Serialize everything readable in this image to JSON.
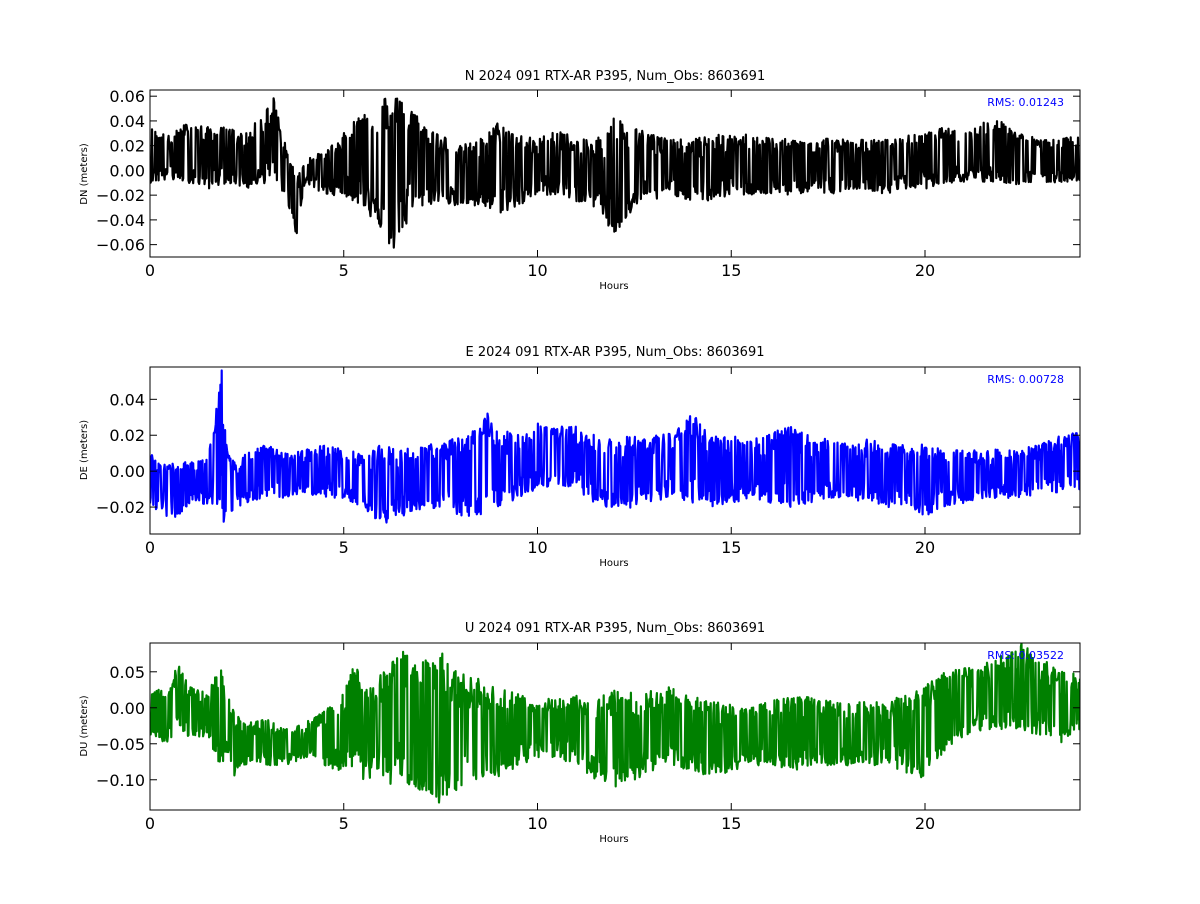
{
  "figure": {
    "background": "#ffffff"
  },
  "chart_data": [
    {
      "type": "line",
      "title": "N 2024 091 RTX-AR  P395, Num_Obs: 8603691",
      "xlabel": "Hours",
      "ylabel": "DN (meters)",
      "xlim": [
        0,
        24
      ],
      "ylim": [
        -0.07,
        0.065
      ],
      "xticks": [
        0,
        5,
        10,
        15,
        20
      ],
      "xtick_labels": [
        "0",
        "5",
        "10",
        "15",
        "20"
      ],
      "yticks": [
        -0.06,
        -0.04,
        -0.02,
        0.0,
        0.02,
        0.04,
        0.06
      ],
      "ytick_labels": [
        "−0.06",
        "−0.04",
        "−0.02",
        "0.00",
        "0.02",
        "0.04",
        "0.06"
      ],
      "annotation": "RMS:  0.01243",
      "annotation_color": "#0000ff",
      "grid": false,
      "series": [
        {
          "color": "#000000",
          "x": [
            0,
            0.5,
            1,
            1.5,
            2,
            2.5,
            3,
            3.2,
            3.5,
            3.8,
            4,
            4.5,
            5,
            5.5,
            6,
            6.2,
            6.5,
            7,
            7.5,
            8,
            8.5,
            9,
            9.5,
            10,
            10.5,
            11,
            11.5,
            12,
            12.5,
            13,
            13.5,
            14,
            14.5,
            15,
            15.5,
            16,
            16.5,
            17,
            17.5,
            18,
            18.5,
            19,
            19.5,
            20,
            20.5,
            21,
            21.5,
            22,
            22.5,
            23,
            23.5,
            24
          ],
          "upper": [
            0.035,
            0.028,
            0.04,
            0.035,
            0.035,
            0.03,
            0.05,
            0.06,
            0.02,
            -0.005,
            0.01,
            0.015,
            0.03,
            0.05,
            0.065,
            0.055,
            0.065,
            0.04,
            0.03,
            0.02,
            0.025,
            0.04,
            0.03,
            0.025,
            0.035,
            0.025,
            0.025,
            0.045,
            0.035,
            0.03,
            0.025,
            0.025,
            0.03,
            0.028,
            0.03,
            0.027,
            0.025,
            0.025,
            0.027,
            0.025,
            0.025,
            0.025,
            0.028,
            0.03,
            0.035,
            0.03,
            0.04,
            0.04,
            0.03,
            0.025,
            0.025,
            0.03
          ],
          "lower": [
            -0.01,
            -0.008,
            -0.01,
            -0.015,
            -0.01,
            -0.015,
            -0.01,
            -0.01,
            -0.02,
            -0.055,
            -0.01,
            -0.02,
            -0.02,
            -0.03,
            -0.05,
            -0.07,
            -0.05,
            -0.03,
            -0.025,
            -0.03,
            -0.03,
            -0.035,
            -0.03,
            -0.02,
            -0.02,
            -0.025,
            -0.03,
            -0.055,
            -0.03,
            -0.025,
            -0.02,
            -0.025,
            -0.025,
            -0.02,
            -0.02,
            -0.02,
            -0.02,
            -0.018,
            -0.02,
            -0.015,
            -0.015,
            -0.02,
            -0.015,
            -0.015,
            -0.01,
            -0.01,
            -0.01,
            -0.01,
            -0.012,
            -0.01,
            -0.01,
            -0.008
          ]
        }
      ]
    },
    {
      "type": "line",
      "title": "E 2024 091 RTX-AR  P395, Num_Obs: 8603691",
      "xlabel": "Hours",
      "ylabel": "DE (meters)",
      "xlim": [
        0,
        24
      ],
      "ylim": [
        -0.035,
        0.058
      ],
      "xticks": [
        0,
        5,
        10,
        15,
        20
      ],
      "xtick_labels": [
        "0",
        "5",
        "10",
        "15",
        "20"
      ],
      "yticks": [
        -0.02,
        0.0,
        0.02,
        0.04
      ],
      "ytick_labels": [
        "−0.02",
        "0.00",
        "0.02",
        "0.04"
      ],
      "annotation": "RMS:  0.00728",
      "annotation_color": "#0000ff",
      "grid": false,
      "series": [
        {
          "color": "#0000ff",
          "x": [
            0,
            0.5,
            1,
            1.5,
            1.85,
            1.9,
            2,
            2.2,
            2.5,
            3,
            3.5,
            4,
            4.5,
            5,
            5.5,
            6,
            6.5,
            7,
            7.5,
            8,
            8.5,
            8.7,
            9,
            9.5,
            10,
            10.5,
            11,
            11.5,
            12,
            12.5,
            13,
            13.5,
            14,
            14.5,
            15,
            15.5,
            16,
            16.5,
            17,
            17.5,
            18,
            18.5,
            19,
            19.5,
            20,
            20.5,
            21,
            21.5,
            22,
            22.5,
            23,
            23.5,
            24
          ],
          "upper": [
            0.01,
            0.005,
            0.005,
            0.008,
            0.058,
            0.035,
            0.01,
            0.005,
            0.01,
            0.015,
            0.01,
            0.012,
            0.015,
            0.012,
            0.01,
            0.015,
            0.012,
            0.015,
            0.015,
            0.02,
            0.025,
            0.033,
            0.022,
            0.022,
            0.028,
            0.025,
            0.025,
            0.02,
            0.018,
            0.02,
            0.02,
            0.022,
            0.032,
            0.02,
            0.02,
            0.018,
            0.022,
            0.025,
            0.02,
            0.018,
            0.015,
            0.018,
            0.015,
            0.015,
            0.015,
            0.012,
            0.012,
            0.012,
            0.012,
            0.013,
            0.015,
            0.02,
            0.022
          ],
          "lower": [
            -0.02,
            -0.028,
            -0.02,
            -0.018,
            -0.02,
            -0.03,
            -0.035,
            -0.02,
            -0.018,
            -0.015,
            -0.015,
            -0.012,
            -0.015,
            -0.015,
            -0.02,
            -0.03,
            -0.025,
            -0.022,
            -0.02,
            -0.025,
            -0.028,
            -0.025,
            -0.02,
            -0.015,
            -0.01,
            -0.008,
            -0.01,
            -0.018,
            -0.022,
            -0.02,
            -0.018,
            -0.015,
            -0.018,
            -0.02,
            -0.018,
            -0.015,
            -0.018,
            -0.02,
            -0.018,
            -0.015,
            -0.015,
            -0.018,
            -0.02,
            -0.02,
            -0.025,
            -0.02,
            -0.018,
            -0.015,
            -0.015,
            -0.015,
            -0.012,
            -0.012,
            -0.01
          ]
        }
      ]
    },
    {
      "type": "line",
      "title": "U 2024 091 RTX-AR  P395, Num_Obs: 8603691",
      "xlabel": "Hours",
      "ylabel": "DU (meters)",
      "xlim": [
        0,
        24
      ],
      "ylim": [
        -0.142,
        0.09
      ],
      "xticks": [
        0,
        5,
        10,
        15,
        20
      ],
      "xtick_labels": [
        "0",
        "5",
        "10",
        "15",
        "20"
      ],
      "yticks": [
        -0.1,
        -0.05,
        0.0,
        0.05
      ],
      "ytick_labels": [
        "−0.10",
        "−0.05",
        "0.00",
        "0.05"
      ],
      "annotation": "RMS:  0.03522",
      "annotation_color": "#0000ff",
      "grid": false,
      "series": [
        {
          "color": "#008000",
          "x": [
            0,
            0.5,
            0.7,
            1,
            1.5,
            1.8,
            2,
            2.2,
            2.5,
            3,
            3.5,
            4,
            4.5,
            5,
            5.3,
            5.5,
            6,
            6.5,
            7,
            7.5,
            7.7,
            8,
            8.5,
            9,
            9.5,
            10,
            10.5,
            11,
            11.5,
            12,
            12.5,
            13,
            13.5,
            14,
            14.5,
            15,
            15.5,
            16,
            16.5,
            17,
            17.5,
            18,
            18.5,
            19,
            19.5,
            20,
            20.5,
            21,
            21.5,
            22,
            22.5,
            23,
            23.5,
            24
          ],
          "upper": [
            0.03,
            0.03,
            0.065,
            0.03,
            0.02,
            0.065,
            0.03,
            -0.01,
            -0.02,
            -0.015,
            -0.03,
            -0.02,
            -0.005,
            0.02,
            0.065,
            0.02,
            0.05,
            0.08,
            0.07,
            0.08,
            0.06,
            0.05,
            0.04,
            0.03,
            0.02,
            0.01,
            0.015,
            0.02,
            0.01,
            0.03,
            0.02,
            0.025,
            0.03,
            0.015,
            0.01,
            0.005,
            0.0,
            0.01,
            0.02,
            0.015,
            0.01,
            0.01,
            0.01,
            0.01,
            0.02,
            0.03,
            0.05,
            0.055,
            0.06,
            0.075,
            0.09,
            0.07,
            0.05,
            0.05
          ],
          "lower": [
            -0.04,
            -0.05,
            -0.04,
            -0.04,
            -0.04,
            -0.09,
            -0.06,
            -0.1,
            -0.08,
            -0.08,
            -0.08,
            -0.07,
            -0.08,
            -0.09,
            -0.08,
            -0.1,
            -0.11,
            -0.1,
            -0.12,
            -0.14,
            -0.13,
            -0.12,
            -0.1,
            -0.1,
            -0.08,
            -0.07,
            -0.07,
            -0.08,
            -0.1,
            -0.11,
            -0.1,
            -0.09,
            -0.08,
            -0.09,
            -0.1,
            -0.09,
            -0.08,
            -0.08,
            -0.09,
            -0.08,
            -0.08,
            -0.08,
            -0.08,
            -0.08,
            -0.09,
            -0.1,
            -0.06,
            -0.04,
            -0.03,
            -0.03,
            -0.03,
            -0.04,
            -0.05,
            -0.03
          ]
        }
      ]
    }
  ]
}
